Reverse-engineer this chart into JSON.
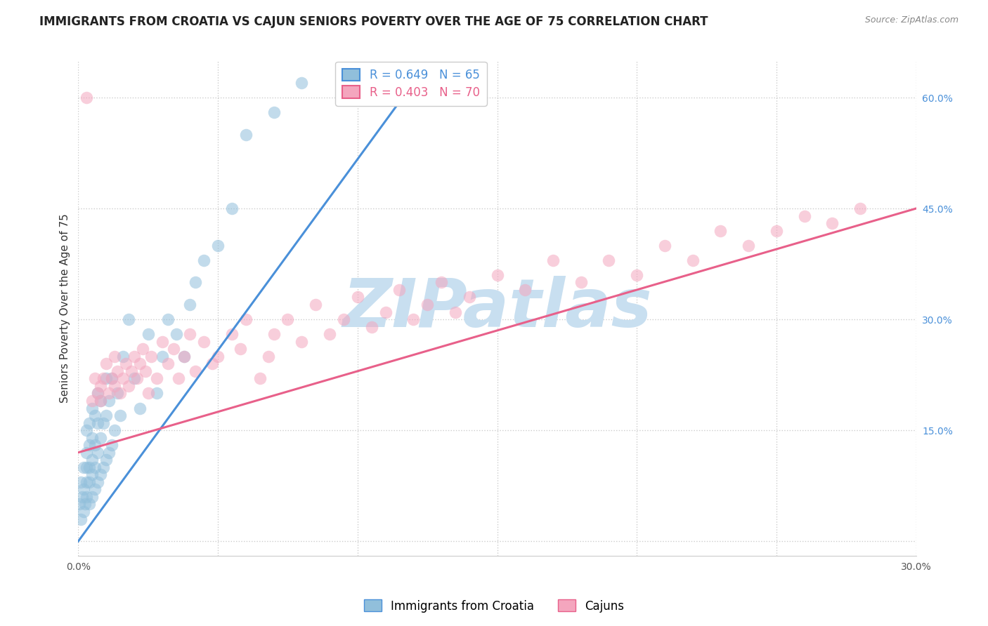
{
  "title": "IMMIGRANTS FROM CROATIA VS CAJUN SENIORS POVERTY OVER THE AGE OF 75 CORRELATION CHART",
  "source": "Source: ZipAtlas.com",
  "ylabel": "Seniors Poverty Over the Age of 75",
  "xlim": [
    0.0,
    0.3
  ],
  "ylim": [
    -0.02,
    0.65
  ],
  "xticks": [
    0.0,
    0.05,
    0.1,
    0.15,
    0.2,
    0.25,
    0.3
  ],
  "xtick_labels": [
    "0.0%",
    "",
    "",
    "",
    "",
    "",
    "30.0%"
  ],
  "yticks_right": [
    0.0,
    0.15,
    0.3,
    0.45,
    0.6
  ],
  "ytick_labels_right": [
    "",
    "15.0%",
    "30.0%",
    "45.0%",
    "60.0%"
  ],
  "blue_R": 0.649,
  "blue_N": 65,
  "pink_R": 0.403,
  "pink_N": 70,
  "blue_color": "#91bfdb",
  "pink_color": "#f4a6be",
  "blue_line_color": "#4a90d9",
  "pink_line_color": "#e8608a",
  "watermark": "ZIPatlas",
  "watermark_color": "#c8dff0",
  "legend_blue_label": "Immigrants from Croatia",
  "legend_pink_label": "Cajuns",
  "blue_scatter_x": [
    0.0005,
    0.001,
    0.001,
    0.0015,
    0.002,
    0.002,
    0.002,
    0.0025,
    0.003,
    0.003,
    0.003,
    0.003,
    0.003,
    0.004,
    0.004,
    0.004,
    0.004,
    0.004,
    0.005,
    0.005,
    0.005,
    0.005,
    0.005,
    0.006,
    0.006,
    0.006,
    0.006,
    0.007,
    0.007,
    0.007,
    0.007,
    0.008,
    0.008,
    0.008,
    0.009,
    0.009,
    0.01,
    0.01,
    0.01,
    0.011,
    0.011,
    0.012,
    0.012,
    0.013,
    0.014,
    0.015,
    0.016,
    0.018,
    0.02,
    0.022,
    0.025,
    0.028,
    0.03,
    0.032,
    0.035,
    0.038,
    0.04,
    0.042,
    0.045,
    0.05,
    0.055,
    0.06,
    0.07,
    0.08,
    0.1
  ],
  "blue_scatter_y": [
    0.05,
    0.03,
    0.08,
    0.06,
    0.04,
    0.07,
    0.1,
    0.05,
    0.06,
    0.08,
    0.1,
    0.12,
    0.15,
    0.05,
    0.08,
    0.1,
    0.13,
    0.16,
    0.06,
    0.09,
    0.11,
    0.14,
    0.18,
    0.07,
    0.1,
    0.13,
    0.17,
    0.08,
    0.12,
    0.16,
    0.2,
    0.09,
    0.14,
    0.19,
    0.1,
    0.16,
    0.11,
    0.17,
    0.22,
    0.12,
    0.19,
    0.13,
    0.22,
    0.15,
    0.2,
    0.17,
    0.25,
    0.3,
    0.22,
    0.18,
    0.28,
    0.2,
    0.25,
    0.3,
    0.28,
    0.25,
    0.32,
    0.35,
    0.38,
    0.4,
    0.45,
    0.55,
    0.58,
    0.62,
    0.6
  ],
  "pink_scatter_x": [
    0.003,
    0.005,
    0.006,
    0.007,
    0.008,
    0.008,
    0.009,
    0.01,
    0.011,
    0.012,
    0.013,
    0.013,
    0.014,
    0.015,
    0.016,
    0.017,
    0.018,
    0.019,
    0.02,
    0.021,
    0.022,
    0.023,
    0.024,
    0.025,
    0.026,
    0.028,
    0.03,
    0.032,
    0.034,
    0.036,
    0.038,
    0.04,
    0.042,
    0.045,
    0.048,
    0.05,
    0.055,
    0.058,
    0.06,
    0.065,
    0.068,
    0.07,
    0.075,
    0.08,
    0.085,
    0.09,
    0.095,
    0.1,
    0.105,
    0.11,
    0.115,
    0.12,
    0.125,
    0.13,
    0.135,
    0.14,
    0.15,
    0.16,
    0.17,
    0.18,
    0.19,
    0.2,
    0.21,
    0.22,
    0.23,
    0.24,
    0.25,
    0.26,
    0.27,
    0.28
  ],
  "pink_scatter_y": [
    0.6,
    0.19,
    0.22,
    0.2,
    0.19,
    0.21,
    0.22,
    0.24,
    0.2,
    0.22,
    0.25,
    0.21,
    0.23,
    0.2,
    0.22,
    0.24,
    0.21,
    0.23,
    0.25,
    0.22,
    0.24,
    0.26,
    0.23,
    0.2,
    0.25,
    0.22,
    0.27,
    0.24,
    0.26,
    0.22,
    0.25,
    0.28,
    0.23,
    0.27,
    0.24,
    0.25,
    0.28,
    0.26,
    0.3,
    0.22,
    0.25,
    0.28,
    0.3,
    0.27,
    0.32,
    0.28,
    0.3,
    0.33,
    0.29,
    0.31,
    0.34,
    0.3,
    0.32,
    0.35,
    0.31,
    0.33,
    0.36,
    0.34,
    0.38,
    0.35,
    0.38,
    0.36,
    0.4,
    0.38,
    0.42,
    0.4,
    0.42,
    0.44,
    0.43,
    0.45
  ],
  "blue_line_x": [
    0.0,
    0.12
  ],
  "blue_line_y": [
    0.0,
    0.62
  ],
  "pink_line_x": [
    0.0,
    0.3
  ],
  "pink_line_y": [
    0.12,
    0.45
  ],
  "background_color": "#ffffff",
  "grid_color": "#cccccc",
  "title_fontsize": 12,
  "axis_fontsize": 11,
  "tick_fontsize": 10,
  "legend_fontsize": 12
}
